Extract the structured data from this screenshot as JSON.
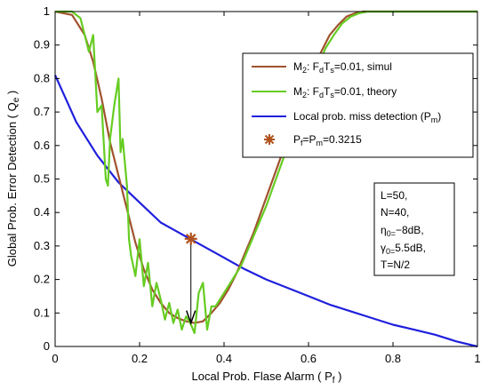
{
  "chart_data": {
    "type": "line",
    "xlabel": "Local Prob. Flase Alarm ( P_f )",
    "ylabel": "Global Prob. Error Detection ( Q_e )",
    "xlim": [
      0,
      1
    ],
    "ylim": [
      0,
      1
    ],
    "xticks": [
      0,
      0.2,
      0.4,
      0.6,
      0.8,
      1
    ],
    "yticks": [
      0,
      0.1,
      0.2,
      0.3,
      0.4,
      0.5,
      0.6,
      0.7,
      0.8,
      0.9,
      1
    ],
    "xtick_labels": [
      "0",
      "0.2",
      "0.4",
      "0.6",
      "0.8",
      "1"
    ],
    "ytick_labels": [
      "0",
      "0.1",
      "0.2",
      "0.3",
      "0.4",
      "0.5",
      "0.6",
      "0.7",
      "0.8",
      "0.9",
      "1"
    ],
    "grid": false,
    "legend_position": "top-right",
    "series": [
      {
        "name": "M2: FdTs=0.01, simul",
        "color": "#a0522d",
        "x": [
          0,
          0.04,
          0.07,
          0.09,
          0.11,
          0.13,
          0.15,
          0.17,
          0.19,
          0.21,
          0.23,
          0.25,
          0.27,
          0.29,
          0.31,
          0.33,
          0.35,
          0.37,
          0.39,
          0.41,
          0.43,
          0.45,
          0.47,
          0.49,
          0.51,
          0.53,
          0.55,
          0.57,
          0.59,
          0.61,
          0.63,
          0.65,
          0.67,
          0.69,
          0.71,
          0.73,
          0.75,
          0.8,
          0.9,
          1
        ],
        "y": [
          1,
          0.99,
          0.93,
          0.85,
          0.74,
          0.61,
          0.51,
          0.41,
          0.31,
          0.23,
          0.17,
          0.13,
          0.1,
          0.085,
          0.075,
          0.07,
          0.075,
          0.1,
          0.13,
          0.17,
          0.22,
          0.28,
          0.34,
          0.41,
          0.48,
          0.55,
          0.62,
          0.69,
          0.76,
          0.82,
          0.88,
          0.93,
          0.96,
          0.985,
          0.995,
          1,
          1,
          1,
          1,
          1
        ]
      },
      {
        "name": "M2: FdTs=0.01, theory",
        "color": "#66cc22",
        "x": [
          0,
          0.04,
          0.06,
          0.08,
          0.09,
          0.1,
          0.11,
          0.12,
          0.125,
          0.13,
          0.14,
          0.15,
          0.155,
          0.16,
          0.17,
          0.175,
          0.18,
          0.19,
          0.2,
          0.21,
          0.22,
          0.23,
          0.24,
          0.25,
          0.26,
          0.27,
          0.28,
          0.29,
          0.3,
          0.31,
          0.32,
          0.33,
          0.34,
          0.35,
          0.36,
          0.37,
          0.38,
          0.4,
          0.42,
          0.44,
          0.46,
          0.48,
          0.5,
          0.52,
          0.54,
          0.56,
          0.58,
          0.6,
          0.62,
          0.64,
          0.66,
          0.68,
          0.7,
          0.72,
          0.74,
          0.8,
          0.9,
          1
        ],
        "y": [
          1,
          1,
          0.98,
          0.88,
          0.93,
          0.7,
          0.72,
          0.5,
          0.48,
          0.62,
          0.72,
          0.8,
          0.58,
          0.62,
          0.48,
          0.32,
          0.27,
          0.21,
          0.32,
          0.18,
          0.25,
          0.12,
          0.19,
          0.14,
          0.08,
          0.13,
          0.07,
          0.11,
          0.05,
          0.09,
          0.07,
          0.04,
          0.16,
          0.19,
          0.05,
          0.12,
          0.12,
          0.16,
          0.2,
          0.24,
          0.3,
          0.36,
          0.42,
          0.49,
          0.56,
          0.63,
          0.7,
          0.77,
          0.83,
          0.89,
          0.93,
          0.965,
          0.985,
          0.995,
          1,
          1,
          1,
          1
        ]
      },
      {
        "name": "Local prob. miss detection (Pm)",
        "color": "#1f1fdd",
        "x": [
          0,
          0.05,
          0.1,
          0.15,
          0.2,
          0.25,
          0.3,
          0.35,
          0.4,
          0.45,
          0.5,
          0.55,
          0.6,
          0.65,
          0.7,
          0.75,
          0.8,
          0.85,
          0.9,
          0.95,
          1
        ],
        "y": [
          0.81,
          0.67,
          0.57,
          0.49,
          0.43,
          0.37,
          0.335,
          0.3,
          0.265,
          0.23,
          0.2,
          0.175,
          0.15,
          0.125,
          0.105,
          0.085,
          0.065,
          0.05,
          0.035,
          0.015,
          0
        ]
      }
    ],
    "marker": {
      "name": "Pf=Pm=0.3215",
      "x": 0.3215,
      "y": 0.3215,
      "color": "#b0521d"
    },
    "arrow": {
      "x": 0.3215,
      "y_from": 0.3215,
      "y_to": 0.07
    },
    "annotation_lines": [
      "L=50,",
      "N=40,",
      "η0=−8dB,",
      "γ0=5.5dB,",
      "T=N/2"
    ]
  }
}
